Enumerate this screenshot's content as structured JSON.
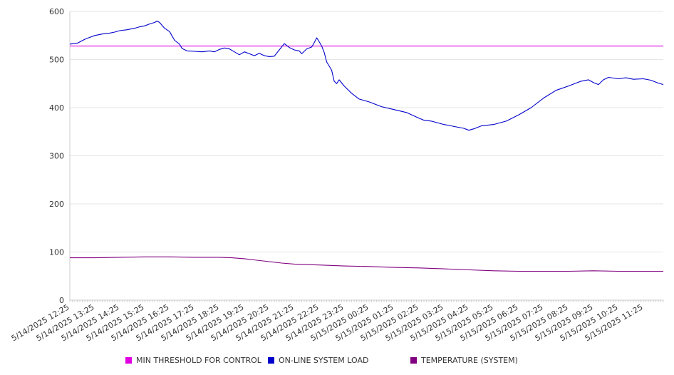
{
  "chart_data": {
    "type": "line",
    "title": "",
    "xlabel": "",
    "ylabel": "",
    "ylim": [
      0,
      600
    ],
    "y_ticks": [
      "0",
      "100",
      "200",
      "300",
      "400",
      "500",
      "600"
    ],
    "x_ticks": [
      "5/14/2025 12:25",
      "5/14/2025 13:25",
      "5/14/2025 14:25",
      "5/14/2025 15:25",
      "5/14/2025 16:25",
      "5/14/2025 17:25",
      "5/14/2025 18:25",
      "5/14/2025 19:25",
      "5/14/2025 20:25",
      "5/14/2025 21:25",
      "5/14/2025 22:25",
      "5/14/2025 23:25",
      "5/15/2025 00:25",
      "5/15/2025 01:25",
      "5/15/2025 02:25",
      "5/15/2025 03:25",
      "5/15/2025 04:25",
      "5/15/2025 05:25",
      "5/15/2025 06:25",
      "5/15/2025 07:25",
      "5/15/2025 08:25",
      "5/15/2025 09:25",
      "5/15/2025 10:25",
      "5/15/2025 11:25"
    ],
    "x_hours": [
      0,
      1,
      2,
      3,
      4,
      5,
      6,
      7,
      8,
      9,
      10,
      11,
      12,
      13,
      14,
      15,
      16,
      17,
      18,
      19,
      20,
      21,
      22,
      23
    ],
    "x_end_hour": 23.8,
    "grid": true,
    "legend_position": "bottom",
    "series": [
      {
        "name": "MIN THRESHOLD FOR CONTROL",
        "color": "#e000e0",
        "style": "flat",
        "points": [
          [
            0,
            528
          ],
          [
            23.8,
            528
          ]
        ]
      },
      {
        "name": "ON-LINE SYSTEM LOAD",
        "color": "#0000cc",
        "points": [
          [
            0,
            532
          ],
          [
            0.3,
            534
          ],
          [
            0.6,
            542
          ],
          [
            0.8,
            546
          ],
          [
            1.0,
            550
          ],
          [
            1.3,
            553
          ],
          [
            1.6,
            555
          ],
          [
            1.8,
            557
          ],
          [
            2.0,
            560
          ],
          [
            2.3,
            562
          ],
          [
            2.6,
            565
          ],
          [
            2.8,
            568
          ],
          [
            3.0,
            570
          ],
          [
            3.2,
            574
          ],
          [
            3.4,
            577
          ],
          [
            3.5,
            580
          ],
          [
            3.6,
            577
          ],
          [
            3.7,
            571
          ],
          [
            3.8,
            565
          ],
          [
            4.0,
            558
          ],
          [
            4.2,
            540
          ],
          [
            4.4,
            532
          ],
          [
            4.5,
            523
          ],
          [
            4.7,
            518
          ],
          [
            5.0,
            517
          ],
          [
            5.3,
            516
          ],
          [
            5.6,
            518
          ],
          [
            5.8,
            516
          ],
          [
            6.0,
            521
          ],
          [
            6.2,
            524
          ],
          [
            6.4,
            522
          ],
          [
            6.6,
            516
          ],
          [
            6.8,
            510
          ],
          [
            7.0,
            516
          ],
          [
            7.2,
            512
          ],
          [
            7.4,
            508
          ],
          [
            7.6,
            513
          ],
          [
            7.8,
            508
          ],
          [
            8.0,
            506
          ],
          [
            8.2,
            507
          ],
          [
            8.4,
            520
          ],
          [
            8.6,
            533
          ],
          [
            8.8,
            525
          ],
          [
            9.0,
            520
          ],
          [
            9.2,
            518
          ],
          [
            9.3,
            512
          ],
          [
            9.5,
            522
          ],
          [
            9.7,
            526
          ],
          [
            9.8,
            535
          ],
          [
            9.9,
            545
          ],
          [
            10.0,
            537
          ],
          [
            10.1,
            528
          ],
          [
            10.2,
            515
          ],
          [
            10.3,
            495
          ],
          [
            10.5,
            478
          ],
          [
            10.6,
            455
          ],
          [
            10.7,
            450
          ],
          [
            10.8,
            458
          ],
          [
            11.0,
            445
          ],
          [
            11.3,
            430
          ],
          [
            11.6,
            418
          ],
          [
            12.0,
            412
          ],
          [
            12.5,
            402
          ],
          [
            13.0,
            396
          ],
          [
            13.5,
            390
          ],
          [
            14.0,
            378
          ],
          [
            14.2,
            374
          ],
          [
            14.5,
            372
          ],
          [
            15.0,
            365
          ],
          [
            15.5,
            360
          ],
          [
            15.8,
            357
          ],
          [
            16.0,
            353
          ],
          [
            16.2,
            356
          ],
          [
            16.5,
            362
          ],
          [
            17.0,
            365
          ],
          [
            17.5,
            372
          ],
          [
            18.0,
            385
          ],
          [
            18.5,
            400
          ],
          [
            19.0,
            420
          ],
          [
            19.5,
            436
          ],
          [
            20.0,
            445
          ],
          [
            20.5,
            455
          ],
          [
            20.8,
            458
          ],
          [
            21.0,
            452
          ],
          [
            21.2,
            448
          ],
          [
            21.4,
            458
          ],
          [
            21.6,
            463
          ],
          [
            22.0,
            460
          ],
          [
            22.3,
            462
          ],
          [
            22.6,
            459
          ],
          [
            23.0,
            460
          ],
          [
            23.3,
            457
          ],
          [
            23.6,
            451
          ],
          [
            23.8,
            448
          ]
        ]
      },
      {
        "name": "TEMPERATURE (SYSTEM)",
        "color": "#800080",
        "points": [
          [
            0,
            88
          ],
          [
            1.0,
            88
          ],
          [
            2.0,
            89
          ],
          [
            3.0,
            90
          ],
          [
            4.0,
            90
          ],
          [
            5.0,
            89
          ],
          [
            6.0,
            89
          ],
          [
            6.5,
            88
          ],
          [
            7.0,
            86
          ],
          [
            7.5,
            83
          ],
          [
            8.0,
            80
          ],
          [
            8.5,
            77
          ],
          [
            9.0,
            75
          ],
          [
            10.0,
            73
          ],
          [
            11.0,
            71
          ],
          [
            12.0,
            70
          ],
          [
            13.0,
            68
          ],
          [
            14.0,
            67
          ],
          [
            15.0,
            65
          ],
          [
            16.0,
            63
          ],
          [
            17.0,
            61
          ],
          [
            18.0,
            60
          ],
          [
            19.0,
            60
          ],
          [
            20.0,
            60
          ],
          [
            21.0,
            61
          ],
          [
            22.0,
            60
          ],
          [
            23.0,
            60
          ],
          [
            23.8,
            60
          ]
        ]
      }
    ]
  }
}
